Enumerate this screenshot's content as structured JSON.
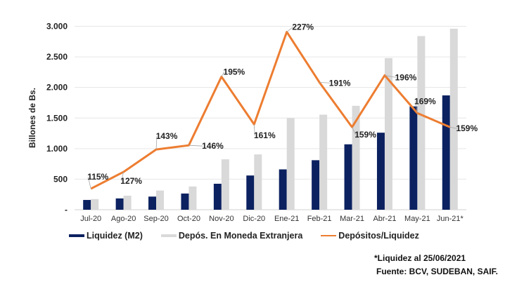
{
  "chart_data": {
    "type": "bar",
    "title": "",
    "ylabel": "Billones de Bs.",
    "xlabel": "",
    "ylim": [
      0,
      3000
    ],
    "secondary_ylim": [
      100,
      231
    ],
    "grid": true,
    "legend_position": "bottom",
    "yticks": [
      "-",
      "500",
      "1.000",
      "1.500",
      "2.000",
      "2.500",
      "3.000"
    ],
    "categories": [
      "Jul-20",
      "Ago-20",
      "Sep-20",
      "Oct-20",
      "Nov-20",
      "Dic-20",
      "Ene-21",
      "Feb-21",
      "Mar-21",
      "Abr-21",
      "May-21",
      "Jun-21*"
    ],
    "series": [
      {
        "name": "Liquidez (M2)",
        "type": "bar",
        "color": "#0b2160",
        "values": [
          160,
          185,
          215,
          265,
          425,
          560,
          660,
          810,
          1070,
          1260,
          1690,
          1870
        ]
      },
      {
        "name": "Depós. En Moneda Extranjera",
        "type": "bar",
        "color": "#d9d9d9",
        "values": [
          175,
          230,
          315,
          380,
          825,
          905,
          1500,
          1555,
          1700,
          2480,
          2840,
          2960
        ]
      },
      {
        "name": "Depósitos/Liquidez",
        "type": "line",
        "axis": "secondary",
        "color": "#ed7d31",
        "values": [
          115,
          127,
          143,
          146,
          195,
          161,
          227,
          191,
          159,
          196,
          169,
          159
        ],
        "labels": [
          "115%",
          "127%",
          "143%",
          "146%",
          "195%",
          "161%",
          "227%",
          "191%",
          "159%",
          "196%",
          "169%",
          "159%"
        ]
      }
    ]
  },
  "notes": {
    "line1": "*Liquidez al 25/06/2021",
    "line2": "Fuente: BCV, SUDEBAN, SAIF."
  }
}
